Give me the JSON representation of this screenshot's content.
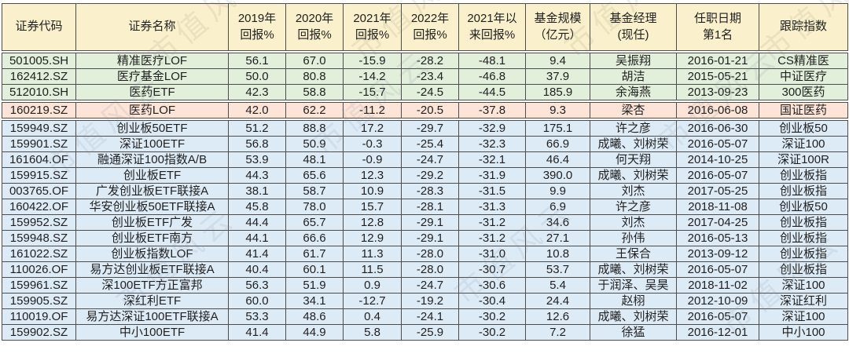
{
  "watermark": {
    "text": "市值风云"
  },
  "colors": {
    "header_bg": "#FAF0CB",
    "group_medical_bg": "#E2EFDA",
    "group_medical_highlight_bg": "#FCE4D6",
    "group_index_bg": "#DDEBF7",
    "border": "#4D4D4D",
    "text": "#1F1F1F"
  },
  "table": {
    "columns": [
      {
        "key": "code",
        "label": "证券代码"
      },
      {
        "key": "name",
        "label": "证券名称"
      },
      {
        "key": "r2019",
        "label": "2019年\n回报%"
      },
      {
        "key": "r2020",
        "label": "2020年\n回报%"
      },
      {
        "key": "r2021",
        "label": "2021年\n回报%"
      },
      {
        "key": "r2022",
        "label": "2022年\n回报%"
      },
      {
        "key": "since2021",
        "label": "2021年以\n来回报%"
      },
      {
        "key": "size",
        "label": "基金规模\n（亿元）"
      },
      {
        "key": "manager",
        "label": "基金经理\n(现任)"
      },
      {
        "key": "date",
        "label": "任职日期\n第1名"
      },
      {
        "key": "index",
        "label": "跟踪指数"
      }
    ],
    "rows": [
      {
        "group": "medical",
        "code": "501005.SH",
        "name": "精准医疗LOF",
        "r2019": "56.1",
        "r2020": "67.0",
        "r2021": "-15.9",
        "r2022": "-28.2",
        "since2021": "-48.1",
        "size": "9.4",
        "manager": "吴振翔",
        "date": "2016-01-21",
        "index": "CS精准医"
      },
      {
        "group": "medical",
        "code": "162412.SZ",
        "name": "医疗基金LOF",
        "r2019": "50.0",
        "r2020": "80.8",
        "r2021": "-14.2",
        "r2022": "-23.4",
        "since2021": "-46.8",
        "size": "37.9",
        "manager": "胡洁",
        "date": "2015-05-21",
        "index": "中证医疗"
      },
      {
        "group": "medical",
        "code": "512010.SH",
        "name": "医药ETF",
        "r2019": "42.3",
        "r2020": "58.8",
        "r2021": "-15.7",
        "r2022": "-24.5",
        "since2021": "-44.5",
        "size": "185.9",
        "manager": "余海燕",
        "date": "2013-09-23",
        "index": "300医药"
      },
      {
        "group": "medical_highlight",
        "code": "160219.SZ",
        "name": "医药LOF",
        "r2019": "42.0",
        "r2020": "62.2",
        "r2021": "-11.2",
        "r2022": "-20.5",
        "since2021": "-37.8",
        "size": "9.3",
        "manager": "梁杏",
        "date": "2016-06-08",
        "index": "国证医药"
      },
      {
        "group": "index",
        "code": "159949.SZ",
        "name": "创业板50ETF",
        "r2019": "51.2",
        "r2020": "88.8",
        "r2021": "17.2",
        "r2022": "-29.7",
        "since2021": "-32.9",
        "size": "175.1",
        "manager": "许之彦",
        "date": "2016-06-30",
        "index": "创业板50"
      },
      {
        "group": "index",
        "code": "159901.SZ",
        "name": "深证100ETF",
        "r2019": "56.8",
        "r2020": "50.9",
        "r2021": "-0.3",
        "r2022": "-25.4",
        "since2021": "-32.3",
        "size": "66.9",
        "manager": "成曦、刘树荣",
        "date": "2016-05-07",
        "index": "深证100"
      },
      {
        "group": "index",
        "code": "161604.OF",
        "name": "融通深证100指数A/B",
        "r2019": "53.9",
        "r2020": "48.1",
        "r2021": "-0.9",
        "r2022": "-24.7",
        "since2021": "-32.1",
        "size": "46.4",
        "manager": "何天翔",
        "date": "2014-10-25",
        "index": "深证100R"
      },
      {
        "group": "index",
        "code": "159915.SZ",
        "name": "创业板ETF",
        "r2019": "44.3",
        "r2020": "65.6",
        "r2021": "12.3",
        "r2022": "-29.2",
        "since2021": "-31.9",
        "size": "390.0",
        "manager": "成曦、刘树荣",
        "date": "2016-05-07",
        "index": "创业板指"
      },
      {
        "group": "index",
        "code": "003765.OF",
        "name": "广发创业板ETF联接A",
        "r2019": "38.1",
        "r2020": "58.7",
        "r2021": "10.9",
        "r2022": "-28.3",
        "since2021": "-31.5",
        "size": "9.9",
        "manager": "刘杰",
        "date": "2017-05-25",
        "index": "创业板指"
      },
      {
        "group": "index",
        "code": "160422.OF",
        "name": "华安创业板50ETF联接A",
        "r2019": "45.8",
        "r2020": "78.0",
        "r2021": "15.7",
        "r2022": "-28.1",
        "since2021": "-31.3",
        "size": "6.9",
        "manager": "许之彦",
        "date": "2018-11-08",
        "index": "创业板50"
      },
      {
        "group": "index",
        "code": "159952.SZ",
        "name": "创业板ETF广发",
        "r2019": "44.4",
        "r2020": "65.7",
        "r2021": "12.8",
        "r2022": "-29.1",
        "since2021": "-31.2",
        "size": "34.6",
        "manager": "刘杰",
        "date": "2017-04-25",
        "index": "创业板指"
      },
      {
        "group": "index",
        "code": "159948.SZ",
        "name": "创业板ETF南方",
        "r2019": "44.1",
        "r2020": "66.6",
        "r2021": "12.9",
        "r2022": "-29.1",
        "since2021": "-31.2",
        "size": "27.1",
        "manager": "孙伟",
        "date": "2016-05-13",
        "index": "创业板指"
      },
      {
        "group": "index",
        "code": "161022.SZ",
        "name": "创业板指数LOF",
        "r2019": "41.4",
        "r2020": "61.7",
        "r2021": "11.3",
        "r2022": "-28.0",
        "since2021": "-31.0",
        "size": "10.8",
        "manager": "王保合",
        "date": "2013-09-12",
        "index": "创业板指"
      },
      {
        "group": "index",
        "code": "110026.OF",
        "name": "易方达创业板ETF联接A",
        "r2019": "40.4",
        "r2020": "60.1",
        "r2021": "11.5",
        "r2022": "-28.0",
        "since2021": "-30.7",
        "size": "53.7",
        "manager": "成曦、刘树荣",
        "date": "2016-05-07",
        "index": "创业板指"
      },
      {
        "group": "index",
        "code": "159961.SZ",
        "name": "深100ETF方正富邦",
        "r2019": "56.3",
        "r2020": "51.9",
        "r2021": "0.9",
        "r2022": "-24.7",
        "since2021": "-30.6",
        "size": "5.4",
        "manager": "于润泽、吴昊",
        "date": "2018-11-02",
        "index": "深证100"
      },
      {
        "group": "index",
        "code": "159905.SZ",
        "name": "深红利ETF",
        "r2019": "60.0",
        "r2020": "34.1",
        "r2021": "-12.7",
        "r2022": "-19.2",
        "since2021": "-30.4",
        "size": "24.4",
        "manager": "赵栩",
        "date": "2012-10-09",
        "index": "深证红利"
      },
      {
        "group": "index",
        "code": "110019.OF",
        "name": "易方达深证100ETF联接A",
        "r2019": "53.3",
        "r2020": "48.6",
        "r2021": "0.4",
        "r2022": "-24.1",
        "since2021": "-30.2",
        "size": "12.6",
        "manager": "成曦、刘树荣",
        "date": "2016-05-07",
        "index": "深证100"
      },
      {
        "group": "index",
        "code": "159902.SZ",
        "name": "中小100ETF",
        "r2019": "41.4",
        "r2020": "44.9",
        "r2021": "5.8",
        "r2022": "-25.9",
        "since2021": "-30.2",
        "size": "7.2",
        "manager": "徐猛",
        "date": "2016-12-01",
        "index": "中小100"
      }
    ]
  }
}
